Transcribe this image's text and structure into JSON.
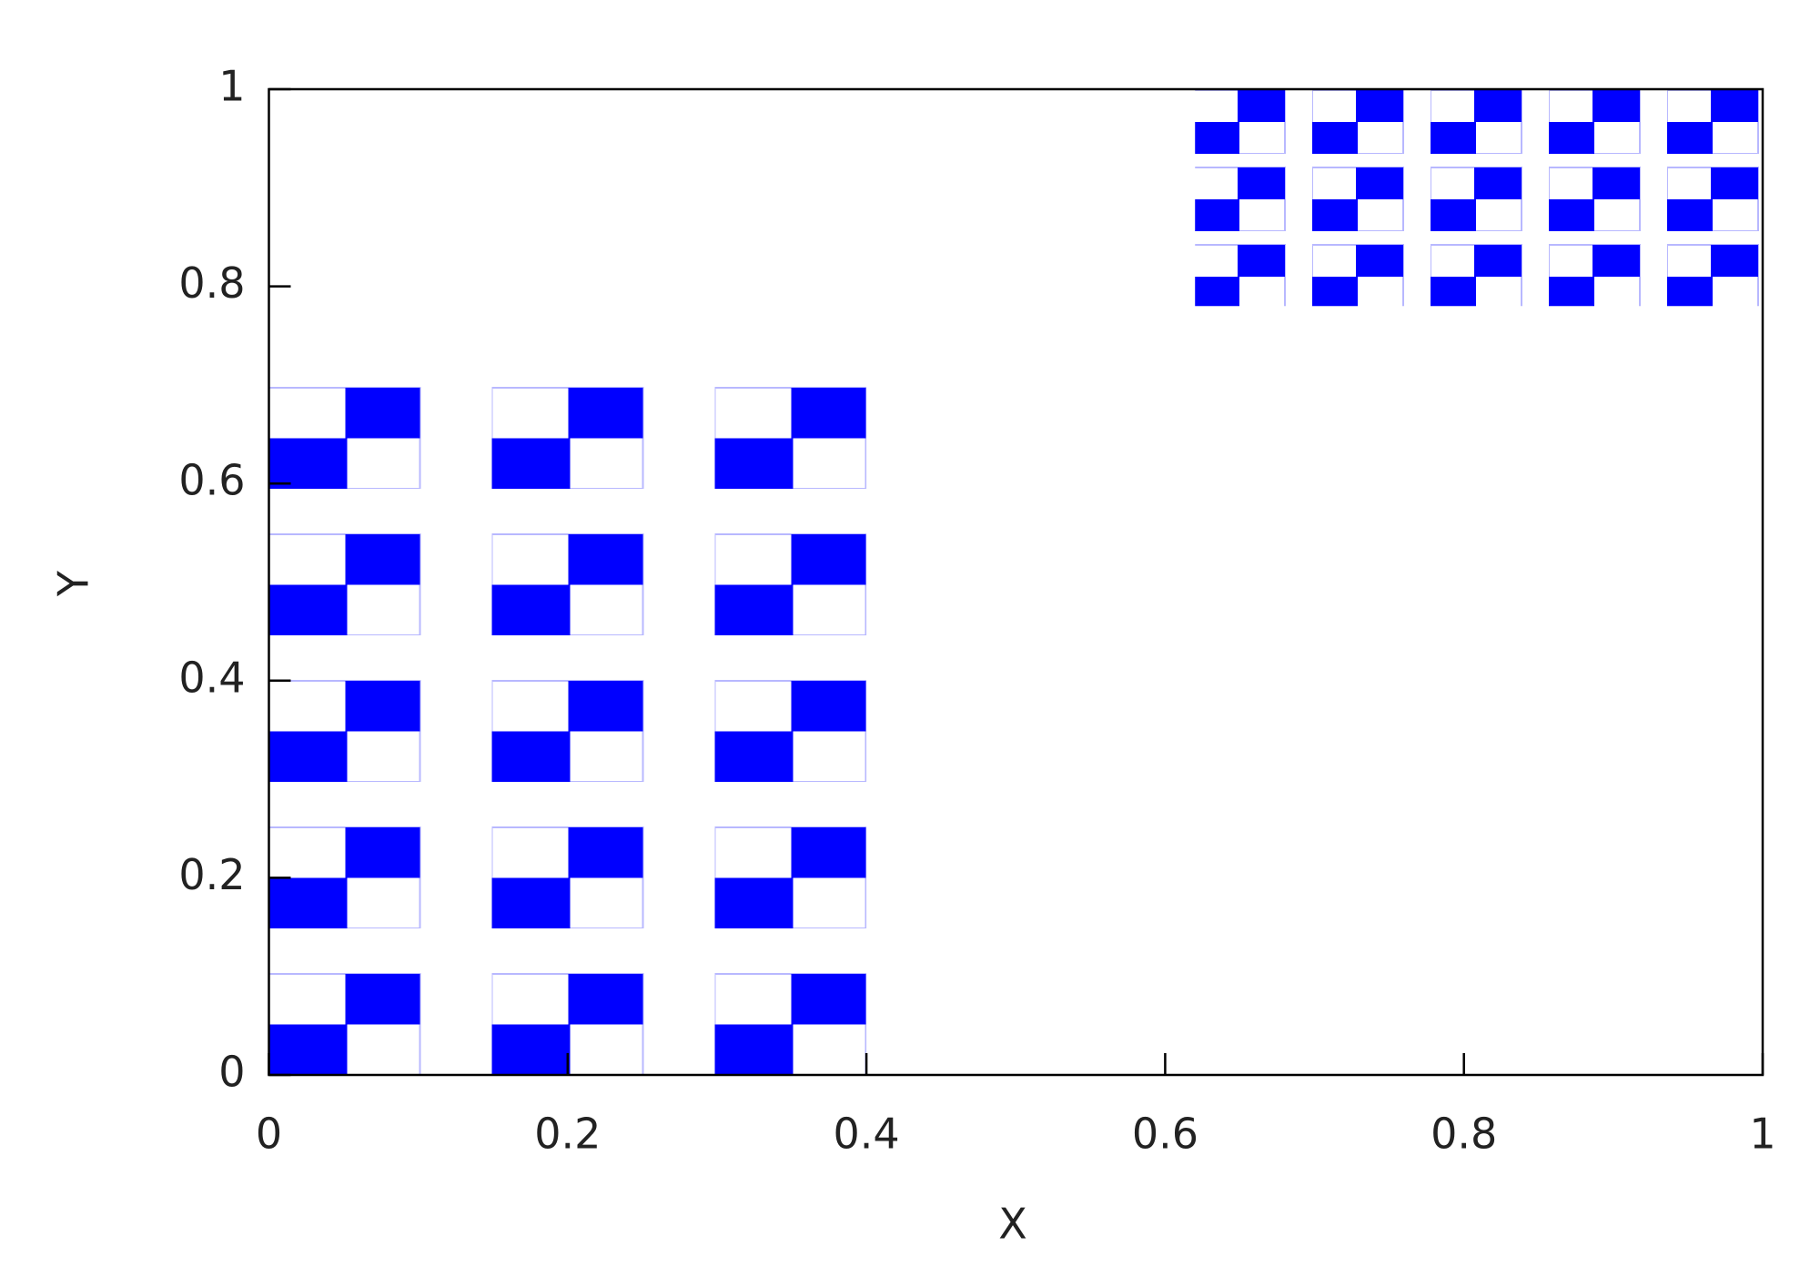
{
  "chart_data": {
    "type": "rect",
    "xlabel": "X",
    "ylabel": "Y",
    "rects": [
      {
        "x": [
          0,
          0.4
        ],
        "y": [
          0,
          0.7
        ],
        "color": "#0000ff"
      },
      {
        "x": [
          0.62,
          1
        ],
        "y": [
          0.78,
          1
        ],
        "color": "#0000ff"
      }
    ],
    "xlim": [
      0,
      1
    ],
    "ylim": [
      0,
      1
    ],
    "xticks": [
      0,
      0.2,
      0.4,
      0.6,
      0.8,
      1
    ],
    "yticks": [
      0,
      0.2,
      0.4,
      0.6,
      0.8,
      1
    ]
  }
}
